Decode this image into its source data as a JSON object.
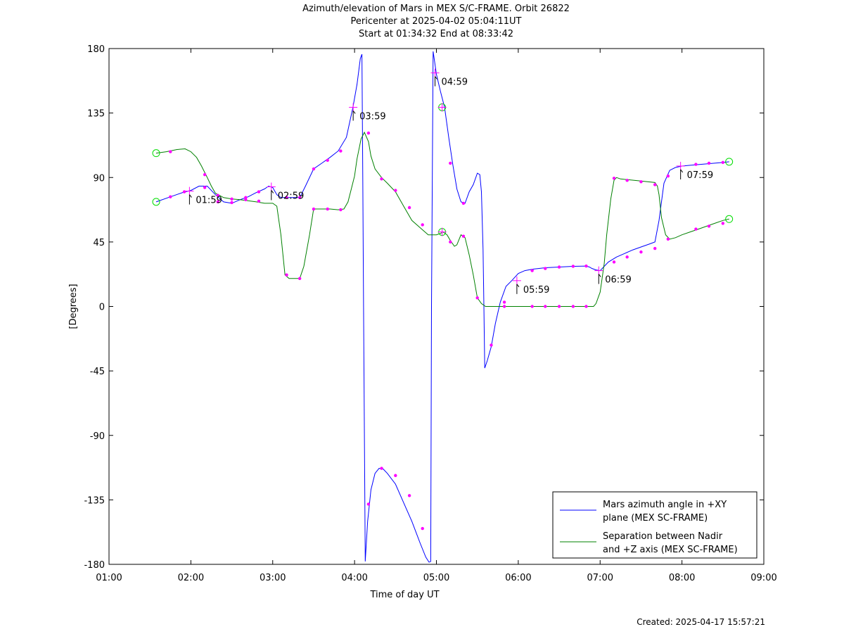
{
  "title_lines": [
    "Azimuth/elevation of Mars in MEX S/C-FRAME.  Orbit 26822",
    "Pericenter at 2025-04-02 05:04:11UT",
    "Start at 01:34:32 End at 08:33:42"
  ],
  "footer": "Created: 2025-04-17 15:57:21",
  "colors": {
    "series_blue": "#0000ff",
    "series_green": "#008000",
    "marker": "#ff00ff",
    "circle": "#00dd00"
  },
  "chart_data": {
    "type": "line",
    "xlabel": "Time of day UT",
    "ylabel": "[Degrees]",
    "xlim": [
      1.0,
      9.0
    ],
    "ylim": [
      -180,
      180
    ],
    "x_tick_values": [
      1,
      2,
      3,
      4,
      5,
      6,
      7,
      8,
      9
    ],
    "x_tick_labels": [
      "01:00",
      "02:00",
      "03:00",
      "04:00",
      "05:00",
      "06:00",
      "07:00",
      "08:00",
      "09:00"
    ],
    "y_tick_values": [
      180,
      135,
      90,
      45,
      0,
      -45,
      -90,
      -135,
      -180
    ],
    "y_tick_labels": [
      "180",
      "135",
      "90",
      "45",
      "0",
      "-45",
      "-90",
      "-135",
      "-180"
    ],
    "grid": false,
    "legend_position": "bottom-right",
    "series": [
      {
        "name": "Mars azimuth angle in +XY plane (MEX SC-FRAME)",
        "legend_lines": [
          "Mars azimuth angle in +XY",
          "plane (MEX SC-FRAME)"
        ],
        "color": "#0000ff",
        "x": [
          1.576,
          1.75,
          1.9,
          2.0,
          2.1,
          2.2,
          2.3,
          2.4,
          2.5,
          2.6,
          2.7,
          2.8,
          2.9,
          2.95,
          3.0,
          3.05,
          3.1,
          3.2,
          3.33,
          3.4,
          3.5,
          3.6,
          3.7,
          3.8,
          3.9,
          3.98,
          4.03,
          4.07,
          4.09,
          4.1,
          4.11,
          4.13,
          4.16,
          4.2,
          4.25,
          4.3,
          4.35,
          4.4,
          4.5,
          4.6,
          4.7,
          4.8,
          4.87,
          4.91,
          4.93,
          4.94,
          4.96,
          4.98,
          5.0,
          5.05,
          5.1,
          5.15,
          5.2,
          5.25,
          5.3,
          5.35,
          5.4,
          5.45,
          5.5,
          5.53,
          5.55,
          5.57,
          5.58,
          5.59,
          5.62,
          5.67,
          5.72,
          5.78,
          5.85,
          5.92,
          6.0,
          6.08,
          6.17,
          6.33,
          6.5,
          6.67,
          6.83,
          6.87,
          6.9,
          6.95,
          7.0,
          7.1,
          7.2,
          7.3,
          7.4,
          7.5,
          7.6,
          7.67,
          7.72,
          7.78,
          7.85,
          7.92,
          8.0,
          8.1,
          8.2,
          8.3,
          8.4,
          8.5,
          8.576
        ],
        "y": [
          73,
          76.5,
          79.5,
          81,
          84,
          84,
          78,
          73,
          72,
          74.5,
          76.5,
          79.5,
          82,
          84,
          83,
          78,
          76,
          76,
          76,
          84,
          96,
          100,
          104,
          108.5,
          118,
          139,
          155,
          173,
          176,
          90,
          0,
          -178,
          -150,
          -128,
          -116.5,
          -113,
          -113.5,
          -116.5,
          -124,
          -137,
          -150,
          -165,
          -175,
          -178.5,
          -178,
          0,
          178,
          170,
          162,
          150,
          139,
          118,
          99,
          82,
          73,
          72,
          80,
          85,
          93,
          92,
          80,
          40,
          0,
          -43,
          -38,
          -28,
          -12,
          3,
          14,
          18,
          23,
          25,
          26,
          27,
          27.5,
          28,
          28.2,
          27.5,
          26.5,
          25.5,
          25,
          31,
          34.5,
          37,
          39.5,
          41.5,
          43.5,
          45,
          60,
          86,
          95,
          97,
          98,
          98.5,
          99,
          99.5,
          100,
          100.5,
          101
        ]
      },
      {
        "name": "Separation between Nadir and +Z axis (MEX SC-FRAME)",
        "legend_lines": [
          "Separation between Nadir",
          "and +Z axis (MEX SC-FRAME)"
        ],
        "color": "#008000",
        "x": [
          1.576,
          1.7,
          1.83,
          1.93,
          2.0,
          2.07,
          2.13,
          2.2,
          2.25,
          2.3,
          2.4,
          2.5,
          2.6,
          2.8,
          2.9,
          3.0,
          3.05,
          3.1,
          3.15,
          3.2,
          3.33,
          3.38,
          3.45,
          3.5,
          3.6,
          3.7,
          3.8,
          3.87,
          3.92,
          3.96,
          4.0,
          4.03,
          4.08,
          4.12,
          4.17,
          4.2,
          4.25,
          4.33,
          4.4,
          4.5,
          4.6,
          4.7,
          4.8,
          4.9,
          5.0,
          5.05,
          5.08,
          5.13,
          5.17,
          5.22,
          5.25,
          5.3,
          5.35,
          5.4,
          5.45,
          5.5,
          5.55,
          5.6,
          5.63,
          5.67,
          5.75,
          5.83,
          6.0,
          6.17,
          6.33,
          6.5,
          6.67,
          6.83,
          6.87,
          6.92,
          6.95,
          7.0,
          7.05,
          7.08,
          7.13,
          7.17,
          7.2,
          7.25,
          7.33,
          7.5,
          7.67,
          7.7,
          7.72,
          7.75,
          7.8,
          7.85,
          7.92,
          8.0,
          8.1,
          8.2,
          8.3,
          8.4,
          8.5,
          8.576
        ],
        "y": [
          107,
          108,
          109.5,
          110,
          108,
          104,
          98,
          90,
          84,
          79,
          76,
          75,
          74.5,
          73,
          72,
          72,
          70,
          50,
          22,
          19.5,
          19.5,
          28,
          50,
          68,
          68,
          68,
          67.5,
          68,
          73,
          82,
          91,
          103,
          117,
          121.5,
          115,
          105,
          96,
          90,
          86,
          80,
          70,
          60,
          55,
          50,
          50,
          51,
          52,
          50,
          46,
          42,
          43,
          50,
          48,
          36,
          22,
          6,
          2,
          0,
          0,
          0,
          0,
          0,
          0,
          0,
          0,
          0,
          0,
          0,
          0,
          0,
          2,
          10,
          30,
          50,
          75,
          88,
          90,
          89,
          88.5,
          87.5,
          86.5,
          84,
          78,
          62,
          50,
          47,
          48,
          50,
          52,
          54,
          56,
          58,
          60,
          61
        ]
      }
    ],
    "hour_annotations": [
      {
        "label": "01:59",
        "x": 1.983,
        "y": 80.5
      },
      {
        "label": "02:59",
        "x": 2.983,
        "y": 83.5
      },
      {
        "label": "03:59",
        "x": 3.983,
        "y": 139
      },
      {
        "label": "04:59",
        "x": 4.983,
        "y": 163
      },
      {
        "label": "05:59",
        "x": 5.983,
        "y": 18
      },
      {
        "label": "06:59",
        "x": 6.983,
        "y": 25
      },
      {
        "label": "07:59",
        "x": 7.983,
        "y": 98
      }
    ],
    "blue_markers": {
      "x": [
        1.75,
        1.92,
        2.17,
        2.33,
        2.5,
        2.67,
        2.83,
        3.17,
        3.33,
        3.5,
        3.67,
        3.83,
        4.17,
        4.33,
        4.5,
        4.67,
        4.83,
        5.17,
        5.33,
        5.67,
        5.83,
        6.17,
        6.33,
        6.5,
        6.67,
        6.83,
        7.17,
        7.33,
        7.5,
        7.67,
        7.83,
        8.17,
        8.33,
        8.5
      ],
      "y": [
        76.5,
        80,
        83,
        73,
        72.5,
        76,
        80,
        76,
        76,
        96,
        102,
        108.5,
        -138,
        -113,
        -118,
        -132,
        -155,
        100,
        72,
        -27,
        3,
        25,
        26.5,
        27.5,
        28,
        28.2,
        31,
        34.5,
        38,
        40.5,
        91,
        99.2,
        100,
        100.5
      ]
    },
    "green_markers": {
      "x": [
        1.75,
        2.17,
        2.33,
        2.5,
        2.67,
        2.83,
        3.17,
        3.33,
        3.5,
        3.67,
        3.83,
        4.17,
        4.33,
        4.5,
        4.67,
        4.83,
        5.17,
        5.33,
        5.5,
        5.83,
        6.17,
        6.33,
        6.5,
        6.67,
        6.83,
        7.17,
        7.33,
        7.5,
        7.67,
        7.83,
        8.17,
        8.33,
        8.5
      ],
      "y": [
        108,
        92,
        77.5,
        75,
        74.5,
        73.5,
        22,
        19.5,
        68,
        68,
        67.5,
        121,
        89,
        81,
        69,
        57,
        45,
        49,
        6,
        0,
        0,
        0,
        0,
        0,
        0,
        89.5,
        88,
        87,
        85,
        47,
        54,
        56,
        58
      ]
    },
    "start_end_circles": [
      {
        "x": 1.576,
        "y": 107
      },
      {
        "x": 1.576,
        "y": 73
      },
      {
        "x": 8.576,
        "y": 101
      },
      {
        "x": 8.576,
        "y": 61
      },
      {
        "x": 5.07,
        "y": 139
      },
      {
        "x": 5.07,
        "y": 52
      }
    ],
    "pericenter_plus_markers": [
      {
        "x": 5.07,
        "y": 139
      },
      {
        "x": 5.07,
        "y": 52
      }
    ]
  }
}
